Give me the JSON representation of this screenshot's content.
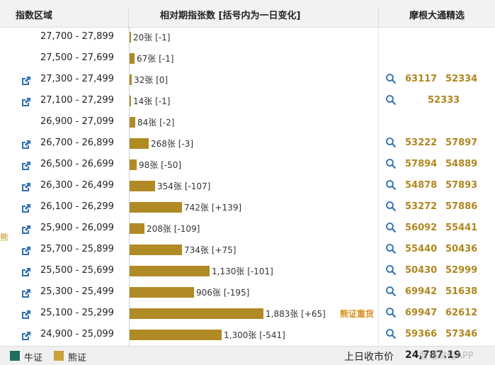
{
  "header": {
    "col_range": "指数区域",
    "col_count": "相对期指张数 [括号内为一日变化]",
    "col_picks": "摩根大通精选"
  },
  "side_label": "熊",
  "zone_label": "熊证重货",
  "colors": {
    "bar": "#b08a24",
    "bull": "#1f6e5f",
    "bear": "#c9a23a",
    "pick": "#b0861f",
    "zone": "#d9901e"
  },
  "rows": [
    {
      "range": "27,700 - 27,899",
      "count": "20张 [-1]",
      "value": 20,
      "link": false,
      "picks": []
    },
    {
      "range": "27,500 - 27,699",
      "count": "67张 [-1]",
      "value": 67,
      "link": false,
      "picks": []
    },
    {
      "range": "27,300 - 27,499",
      "count": "32张 [0]",
      "value": 32,
      "link": true,
      "picks": [
        "63117",
        "52334"
      ]
    },
    {
      "range": "27,100 - 27,299",
      "count": "14张 [-1]",
      "value": 14,
      "link": true,
      "picks": [
        "52333"
      ]
    },
    {
      "range": "26,900 - 27,099",
      "count": "84张 [-2]",
      "value": 84,
      "link": false,
      "picks": []
    },
    {
      "range": "26,700 - 26,899",
      "count": "268张 [-3]",
      "value": 268,
      "link": true,
      "picks": [
        "53222",
        "57897"
      ]
    },
    {
      "range": "26,500 - 26,699",
      "count": "98张 [-50]",
      "value": 98,
      "link": true,
      "picks": [
        "57894",
        "54889"
      ]
    },
    {
      "range": "26,300 - 26,499",
      "count": "354张 [-107]",
      "value": 354,
      "link": true,
      "picks": [
        "54878",
        "57893"
      ]
    },
    {
      "range": "26,100 - 26,299",
      "count": "742张 [+139]",
      "value": 742,
      "link": true,
      "picks": [
        "53272",
        "57886"
      ]
    },
    {
      "range": "25,900 - 26,099",
      "count": "208张 [-109]",
      "value": 208,
      "link": true,
      "picks": [
        "56092",
        "55441"
      ]
    },
    {
      "range": "25,700 - 25,899",
      "count": "734张 [+75]",
      "value": 734,
      "link": true,
      "picks": [
        "55440",
        "50436"
      ]
    },
    {
      "range": "25,500 - 25,699",
      "count": "1,130张 [-101]",
      "value": 1130,
      "link": true,
      "picks": [
        "50430",
        "52999"
      ]
    },
    {
      "range": "25,300 - 25,499",
      "count": "906张 [-195]",
      "value": 906,
      "link": true,
      "picks": [
        "69942",
        "51638"
      ]
    },
    {
      "range": "25,100 - 25,299",
      "count": "1,883张 [+65]",
      "value": 1883,
      "link": true,
      "picks": [
        "69947",
        "62612"
      ],
      "zone": true
    },
    {
      "range": "24,900 - 25,099",
      "count": "1,300张 [-541]",
      "value": 1300,
      "link": true,
      "picks": [
        "59366",
        "57346"
      ]
    }
  ],
  "footer": {
    "bull_label": "牛证",
    "bear_label": "熊证",
    "prev_label": "上日收市价",
    "prev_value": "24,787.19",
    "watermark": "智通财经APP"
  }
}
